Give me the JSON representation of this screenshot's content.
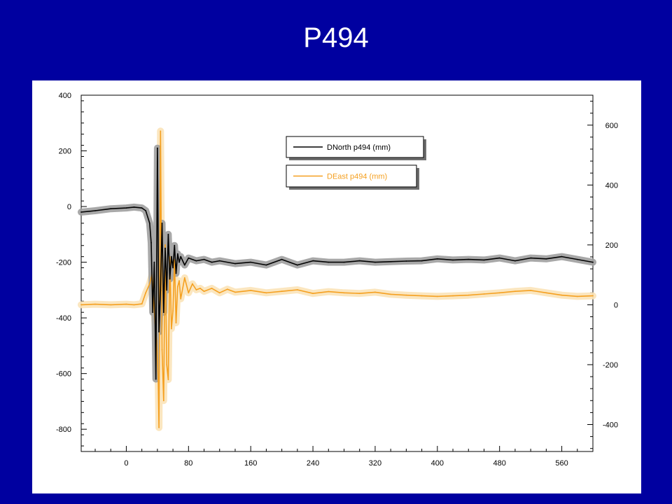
{
  "slide": {
    "title": "P494"
  },
  "chart_data": {
    "type": "line",
    "title": "",
    "xlabel": "",
    "ylabel": "",
    "ylabel_right": "",
    "grid": false,
    "legend": "top-center",
    "xlim": [
      -58,
      600
    ],
    "ylim_left": [
      -880,
      400
    ],
    "ylim_right": [
      -490,
      700
    ],
    "x_ticks": [
      "0",
      "80",
      "160",
      "240",
      "320",
      "400",
      "480",
      "560"
    ],
    "x_tick_values": [
      0,
      80,
      160,
      240,
      320,
      400,
      480,
      560
    ],
    "y_left_ticks": [
      "400",
      "200",
      "0",
      "-200",
      "-400",
      "-600",
      "-800"
    ],
    "y_left_tick_values": [
      400,
      200,
      0,
      -200,
      -400,
      -600,
      -800
    ],
    "y_right_ticks": [
      "600",
      "400",
      "200",
      "0",
      "-200",
      "-400"
    ],
    "y_right_tick_values": [
      600,
      400,
      200,
      0,
      -200,
      -400
    ],
    "series": [
      {
        "name": "DNorth p494 (mm)",
        "axis": "left",
        "color": "#000000",
        "error_band_color": "#9E9E9E",
        "x": [
          -58,
          -40,
          -20,
          0,
          10,
          20,
          25,
          30,
          32,
          34,
          36,
          38,
          40,
          42,
          44,
          46,
          48,
          50,
          52,
          54,
          56,
          58,
          60,
          62,
          64,
          66,
          68,
          70,
          75,
          80,
          90,
          100,
          110,
          120,
          140,
          160,
          180,
          200,
          220,
          240,
          260,
          280,
          300,
          320,
          340,
          360,
          380,
          400,
          420,
          440,
          460,
          480,
          500,
          520,
          540,
          560,
          580,
          600
        ],
        "y": [
          -20,
          -15,
          -8,
          -5,
          -2,
          -5,
          -15,
          -60,
          -130,
          -380,
          -200,
          -620,
          210,
          -450,
          -300,
          -60,
          -380,
          -150,
          -300,
          -100,
          -260,
          -180,
          -220,
          -140,
          -240,
          -170,
          -200,
          -180,
          -210,
          -185,
          -195,
          -190,
          -200,
          -195,
          -205,
          -200,
          -210,
          -190,
          -210,
          -195,
          -200,
          -200,
          -195,
          -200,
          -198,
          -196,
          -195,
          -188,
          -192,
          -190,
          -192,
          -185,
          -195,
          -185,
          -188,
          -180,
          -190,
          -200
        ]
      },
      {
        "name": "DEast p494 (mm)",
        "axis": "right",
        "color": "#F5A020",
        "error_band_color": "#FBE3B8",
        "x": [
          -58,
          -40,
          -20,
          0,
          10,
          20,
          25,
          30,
          33,
          35,
          37,
          39,
          41,
          42,
          43,
          44,
          46,
          48,
          50,
          52,
          54,
          56,
          58,
          60,
          62,
          64,
          66,
          68,
          70,
          75,
          80,
          85,
          90,
          95,
          100,
          110,
          120,
          130,
          140,
          160,
          180,
          200,
          220,
          240,
          260,
          280,
          300,
          320,
          340,
          360,
          380,
          400,
          420,
          440,
          460,
          480,
          500,
          520,
          540,
          560,
          580,
          600
        ],
        "y": [
          0,
          2,
          0,
          2,
          0,
          3,
          40,
          70,
          100,
          20,
          -60,
          -120,
          -250,
          -410,
          30,
          580,
          -150,
          -320,
          200,
          -200,
          -250,
          160,
          -80,
          -20,
          150,
          -60,
          60,
          80,
          20,
          90,
          40,
          70,
          50,
          55,
          45,
          55,
          40,
          52,
          42,
          48,
          40,
          45,
          50,
          38,
          44,
          40,
          38,
          42,
          35,
          32,
          30,
          28,
          30,
          32,
          36,
          40,
          45,
          48,
          40,
          32,
          28,
          30
        ]
      }
    ]
  }
}
